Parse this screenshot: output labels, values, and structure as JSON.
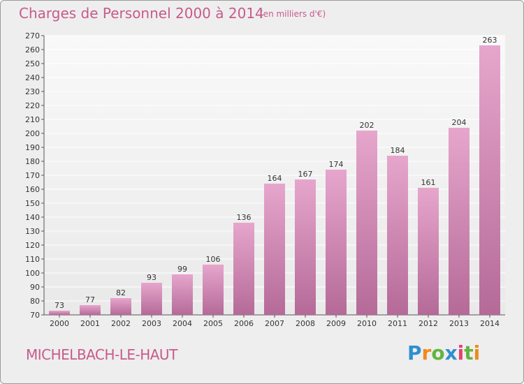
{
  "header": {
    "title": "Charges de Personnel 2000 à 2014",
    "subtitle": "(en milliers d'€)"
  },
  "footer": {
    "commune": "MICHELBACH-LE-HAUT",
    "logo_text": "Proxiti"
  },
  "colors": {
    "title": "#c85a8a",
    "bar_top": "#e6a6cc",
    "bar_bottom": "#b56a98",
    "background": "#eeeeee",
    "plot_background": "#f7f7f7",
    "grid": "#ffffff"
  },
  "chart_data": {
    "type": "bar",
    "title": "Charges de Personnel 2000 à 2014",
    "subtitle": "(en milliers d'€)",
    "categories": [
      "2000",
      "2001",
      "2002",
      "2003",
      "2004",
      "2005",
      "2006",
      "2007",
      "2008",
      "2009",
      "2010",
      "2011",
      "2012",
      "2013",
      "2014"
    ],
    "values": [
      73,
      77,
      82,
      93,
      99,
      106,
      136,
      164,
      167,
      174,
      202,
      184,
      161,
      204,
      263
    ],
    "ylim": [
      70,
      270
    ],
    "yticks": [
      70,
      80,
      90,
      100,
      110,
      120,
      130,
      140,
      150,
      160,
      170,
      180,
      190,
      200,
      210,
      220,
      230,
      240,
      250,
      260,
      270
    ],
    "xlabel": "",
    "ylabel": "",
    "grid": true,
    "legend": "none"
  }
}
